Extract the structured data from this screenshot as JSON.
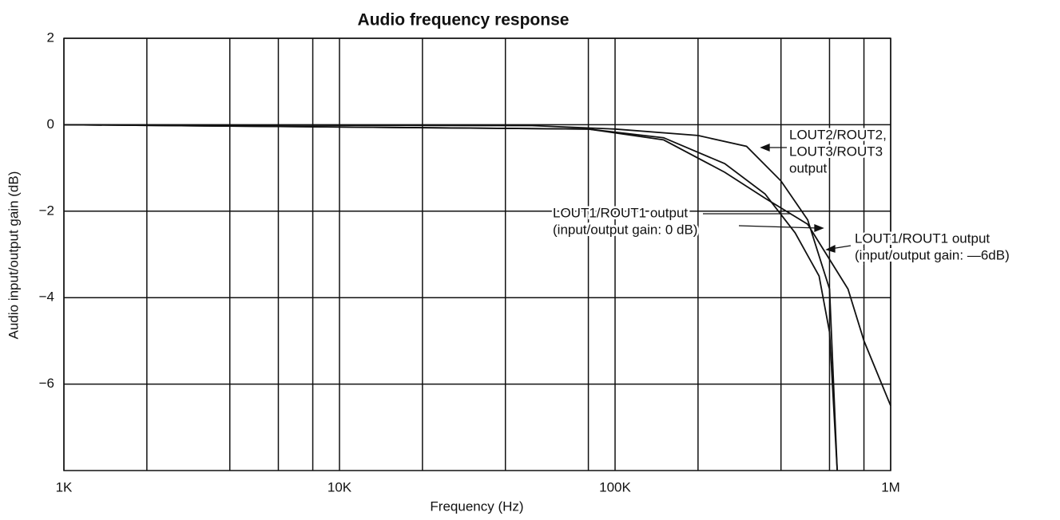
{
  "chart_data": {
    "type": "line",
    "title": "Audio frequency response",
    "xlabel": "Frequency (Hz)",
    "ylabel": "Audio input/output gain (dB)",
    "xscale": "log",
    "xlim": [
      1000,
      1000000
    ],
    "ylim": [
      -8,
      2
    ],
    "xticks": [
      {
        "value": 1000,
        "label": "1K"
      },
      {
        "value": 10000,
        "label": "10K"
      },
      {
        "value": 100000,
        "label": "100K"
      },
      {
        "value": 1000000,
        "label": "1M"
      }
    ],
    "xgrid": [
      2000,
      4000,
      6000,
      8000,
      20000,
      40000,
      80000,
      200000,
      400000,
      600000,
      800000
    ],
    "yticks": [
      2,
      0,
      {
        "value": -2,
        "label": "−2"
      },
      {
        "value": -4,
        "label": "−4"
      },
      {
        "value": -6,
        "label": "−6"
      }
    ],
    "grid": true,
    "series": [
      {
        "color": "#111111",
        "x": [
          1000,
          50000,
          100000,
          200000,
          300000,
          400000,
          500000,
          600000,
          640000
        ],
        "values": [
          0,
          -0.02,
          -0.1,
          -0.25,
          -0.5,
          -1.3,
          -2.2,
          -3.8,
          -8
        ]
      },
      {
        "color": "#111111",
        "x": [
          1000,
          80000,
          150000,
          250000,
          350000,
          450000,
          550000,
          600000,
          640000
        ],
        "values": [
          0,
          -0.1,
          -0.3,
          -0.9,
          -1.6,
          -2.5,
          -3.5,
          -4.8,
          -8
        ]
      },
      {
        "color": "#111111",
        "x": [
          1000,
          80000,
          150000,
          250000,
          350000,
          500000,
          700000,
          800000,
          1000000
        ],
        "values": [
          0,
          -0.1,
          -0.35,
          -1.1,
          -1.7,
          -2.3,
          -3.8,
          -5,
          -6.5
        ]
      }
    ],
    "annotations": [
      [
        "LOUT2/ROUT2,",
        "LOUT3/ROUT3",
        "output"
      ],
      [
        "LOUT1/ROUT1 output",
        "(input/output gain: 0 dB)"
      ],
      [
        "LOUT1/ROUT1 output",
        "(input/output gain: —6dB)"
      ]
    ]
  }
}
